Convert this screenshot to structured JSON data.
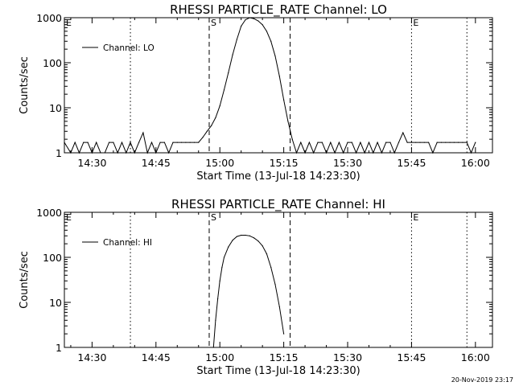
{
  "timestamp": "20-Nov-2019 23:17",
  "chart_data": [
    {
      "type": "line",
      "title": "RHESSI PARTICLE_RATE Channel: LO",
      "xlabel": "Start Time (13-Jul-18 14:23:30)",
      "ylabel": "Counts/sec",
      "yscale": "log",
      "xlim": [
        "14:23:30",
        "16:04:00"
      ],
      "ylim": [
        1,
        1000
      ],
      "grid": false,
      "legend_position": "top-left",
      "xticks": [
        "14:30",
        "14:45",
        "15:00",
        "15:15",
        "15:30",
        "15:45",
        "16:00"
      ],
      "yticks": [
        "1",
        "10",
        "100",
        "1000"
      ],
      "markers": [
        {
          "label": "E",
          "time": "14:23:30",
          "style": "dotted"
        },
        {
          "label": "",
          "time": "14:39:00",
          "style": "dotted"
        },
        {
          "label": "S",
          "time": "14:57:30",
          "style": "dashed"
        },
        {
          "label": "",
          "time": "15:16:30",
          "style": "dashed"
        },
        {
          "label": "E",
          "time": "15:45:00",
          "style": "dotted"
        },
        {
          "label": "",
          "time": "15:58:00",
          "style": "dotted"
        }
      ],
      "series": [
        {
          "name": "Channel: LO",
          "x": [
            "14:23:30",
            "14:25:00",
            "14:26:00",
            "14:27:00",
            "14:28:00",
            "14:29:00",
            "14:30:00",
            "14:31:00",
            "14:32:00",
            "14:33:00",
            "14:34:00",
            "14:35:00",
            "14:36:00",
            "14:37:00",
            "14:38:00",
            "14:39:00",
            "14:40:00",
            "14:41:00",
            "14:42:00",
            "14:43:00",
            "14:44:00",
            "14:45:00",
            "14:46:00",
            "14:47:00",
            "14:48:00",
            "14:49:00",
            "14:50:00",
            "14:51:00",
            "14:52:00",
            "14:53:00",
            "14:54:00",
            "14:55:00",
            "14:56:00",
            "14:57:00",
            "14:58:00",
            "14:59:00",
            "15:00:00",
            "15:01:00",
            "15:02:00",
            "15:03:00",
            "15:04:00",
            "15:05:00",
            "15:06:00",
            "15:07:00",
            "15:08:00",
            "15:09:00",
            "15:10:00",
            "15:11:00",
            "15:12:00",
            "15:13:00",
            "15:14:00",
            "15:15:00",
            "15:16:00",
            "15:17:00",
            "15:18:00",
            "15:19:00",
            "15:20:00",
            "15:21:00",
            "15:22:00",
            "15:23:00",
            "15:24:00",
            "15:25:00",
            "15:26:00",
            "15:27:00",
            "15:28:00",
            "15:29:00",
            "15:30:00",
            "15:31:00",
            "15:32:00",
            "15:33:00",
            "15:34:00",
            "15:35:00",
            "15:36:00",
            "15:37:00",
            "15:38:00",
            "15:39:00",
            "15:40:00",
            "15:41:00",
            "15:42:00",
            "15:43:00",
            "15:44:00",
            "15:45:00",
            "15:46:00",
            "15:47:00",
            "15:48:00",
            "15:49:00",
            "15:50:00",
            "15:51:00",
            "15:52:00",
            "15:53:00",
            "15:54:00",
            "15:55:00",
            "15:56:00",
            "15:57:00",
            "15:58:00",
            "15:59:00",
            "16:00:00"
          ],
          "y": [
            1.7,
            1,
            1.7,
            1,
            1.7,
            1.7,
            1,
            1.7,
            1,
            1,
            1.7,
            1.7,
            1,
            1.7,
            1,
            1.7,
            1,
            1.7,
            2.8,
            1,
            1.7,
            1,
            1.7,
            1.7,
            1,
            1.7,
            1.7,
            1.7,
            1.7,
            1.7,
            1.7,
            1.7,
            2.2,
            3,
            4,
            6,
            11,
            25,
            60,
            150,
            330,
            650,
            900,
            1000,
            950,
            850,
            700,
            500,
            300,
            140,
            50,
            15,
            5,
            2,
            1,
            1.7,
            1,
            1.7,
            1,
            1.7,
            1.7,
            1,
            1.7,
            1,
            1.7,
            1,
            1.7,
            1.7,
            1,
            1.7,
            1,
            1.7,
            1,
            1.7,
            1,
            1.7,
            1.7,
            1,
            1.7,
            2.8,
            1.7,
            1.7,
            1.7,
            1.7,
            1.7,
            1.7,
            1,
            1.7,
            1.7,
            1.7,
            1.7,
            1.7,
            1.7,
            1.7,
            1.7,
            1,
            1.7
          ]
        }
      ]
    },
    {
      "type": "line",
      "title": "RHESSI PARTICLE_RATE Channel: HI",
      "xlabel": "Start Time (13-Jul-18 14:23:30)",
      "ylabel": "Counts/sec",
      "yscale": "log",
      "xlim": [
        "14:23:30",
        "16:04:00"
      ],
      "ylim": [
        1,
        1000
      ],
      "grid": false,
      "legend_position": "top-left",
      "xticks": [
        "14:30",
        "14:45",
        "15:00",
        "15:15",
        "15:30",
        "15:45",
        "16:00"
      ],
      "yticks": [
        "1",
        "10",
        "100",
        "1000"
      ],
      "markers": [
        {
          "label": "E",
          "time": "14:23:30",
          "style": "dotted"
        },
        {
          "label": "",
          "time": "14:39:00",
          "style": "dotted"
        },
        {
          "label": "S",
          "time": "14:57:30",
          "style": "dashed"
        },
        {
          "label": "",
          "time": "15:16:30",
          "style": "dashed"
        },
        {
          "label": "E",
          "time": "15:45:00",
          "style": "dotted"
        },
        {
          "label": "",
          "time": "15:58:00",
          "style": "dotted"
        }
      ],
      "series": [
        {
          "name": "Channel: HI",
          "x": [
            "14:58:30",
            "14:59:00",
            "14:59:30",
            "15:00:00",
            "15:00:30",
            "15:01:00",
            "15:02:00",
            "15:03:00",
            "15:04:00",
            "15:05:00",
            "15:06:00",
            "15:07:00",
            "15:08:00",
            "15:09:00",
            "15:10:00",
            "15:11:00",
            "15:12:00",
            "15:13:00",
            "15:14:00",
            "15:15:00"
          ],
          "y": [
            1,
            4,
            12,
            30,
            60,
            100,
            170,
            240,
            290,
            310,
            310,
            300,
            270,
            230,
            180,
            120,
            60,
            25,
            8,
            2
          ]
        }
      ]
    }
  ]
}
